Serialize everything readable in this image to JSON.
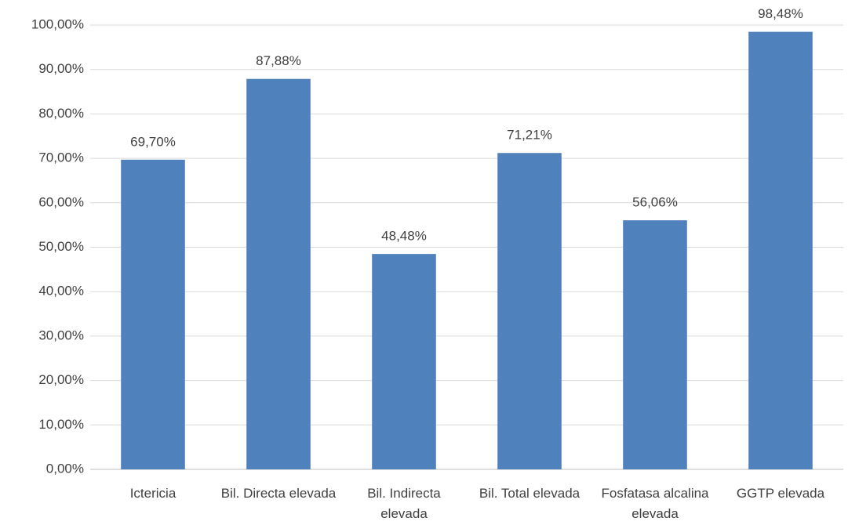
{
  "chart_data": {
    "type": "bar",
    "categories": [
      "Ictericia",
      "Bil. Directa elevada",
      "Bil. Indirecta elevada",
      "Bil. Total elevada",
      "Fosfatasa alcalina elevada",
      "GGTP elevada"
    ],
    "values": [
      69.7,
      87.88,
      48.48,
      71.21,
      56.06,
      98.48
    ],
    "value_labels": [
      "69,70%",
      "87,88%",
      "48,48%",
      "71,21%",
      "56,06%",
      "98,48%"
    ],
    "color": "#4f81bd",
    "ylim": [
      0,
      100
    ],
    "yticks": [
      {
        "value": 0,
        "label": "0,00%"
      },
      {
        "value": 10,
        "label": "10,00%"
      },
      {
        "value": 20,
        "label": "20,00%"
      },
      {
        "value": 30,
        "label": "30,00%"
      },
      {
        "value": 40,
        "label": "40,00%"
      },
      {
        "value": 50,
        "label": "50,00%"
      },
      {
        "value": 60,
        "label": "60,00%"
      },
      {
        "value": 70,
        "label": "70,00%"
      },
      {
        "value": 80,
        "label": "80,00%"
      },
      {
        "value": 90,
        "label": "90,00%"
      },
      {
        "value": 100,
        "label": "100,00%"
      }
    ],
    "grid": true
  }
}
